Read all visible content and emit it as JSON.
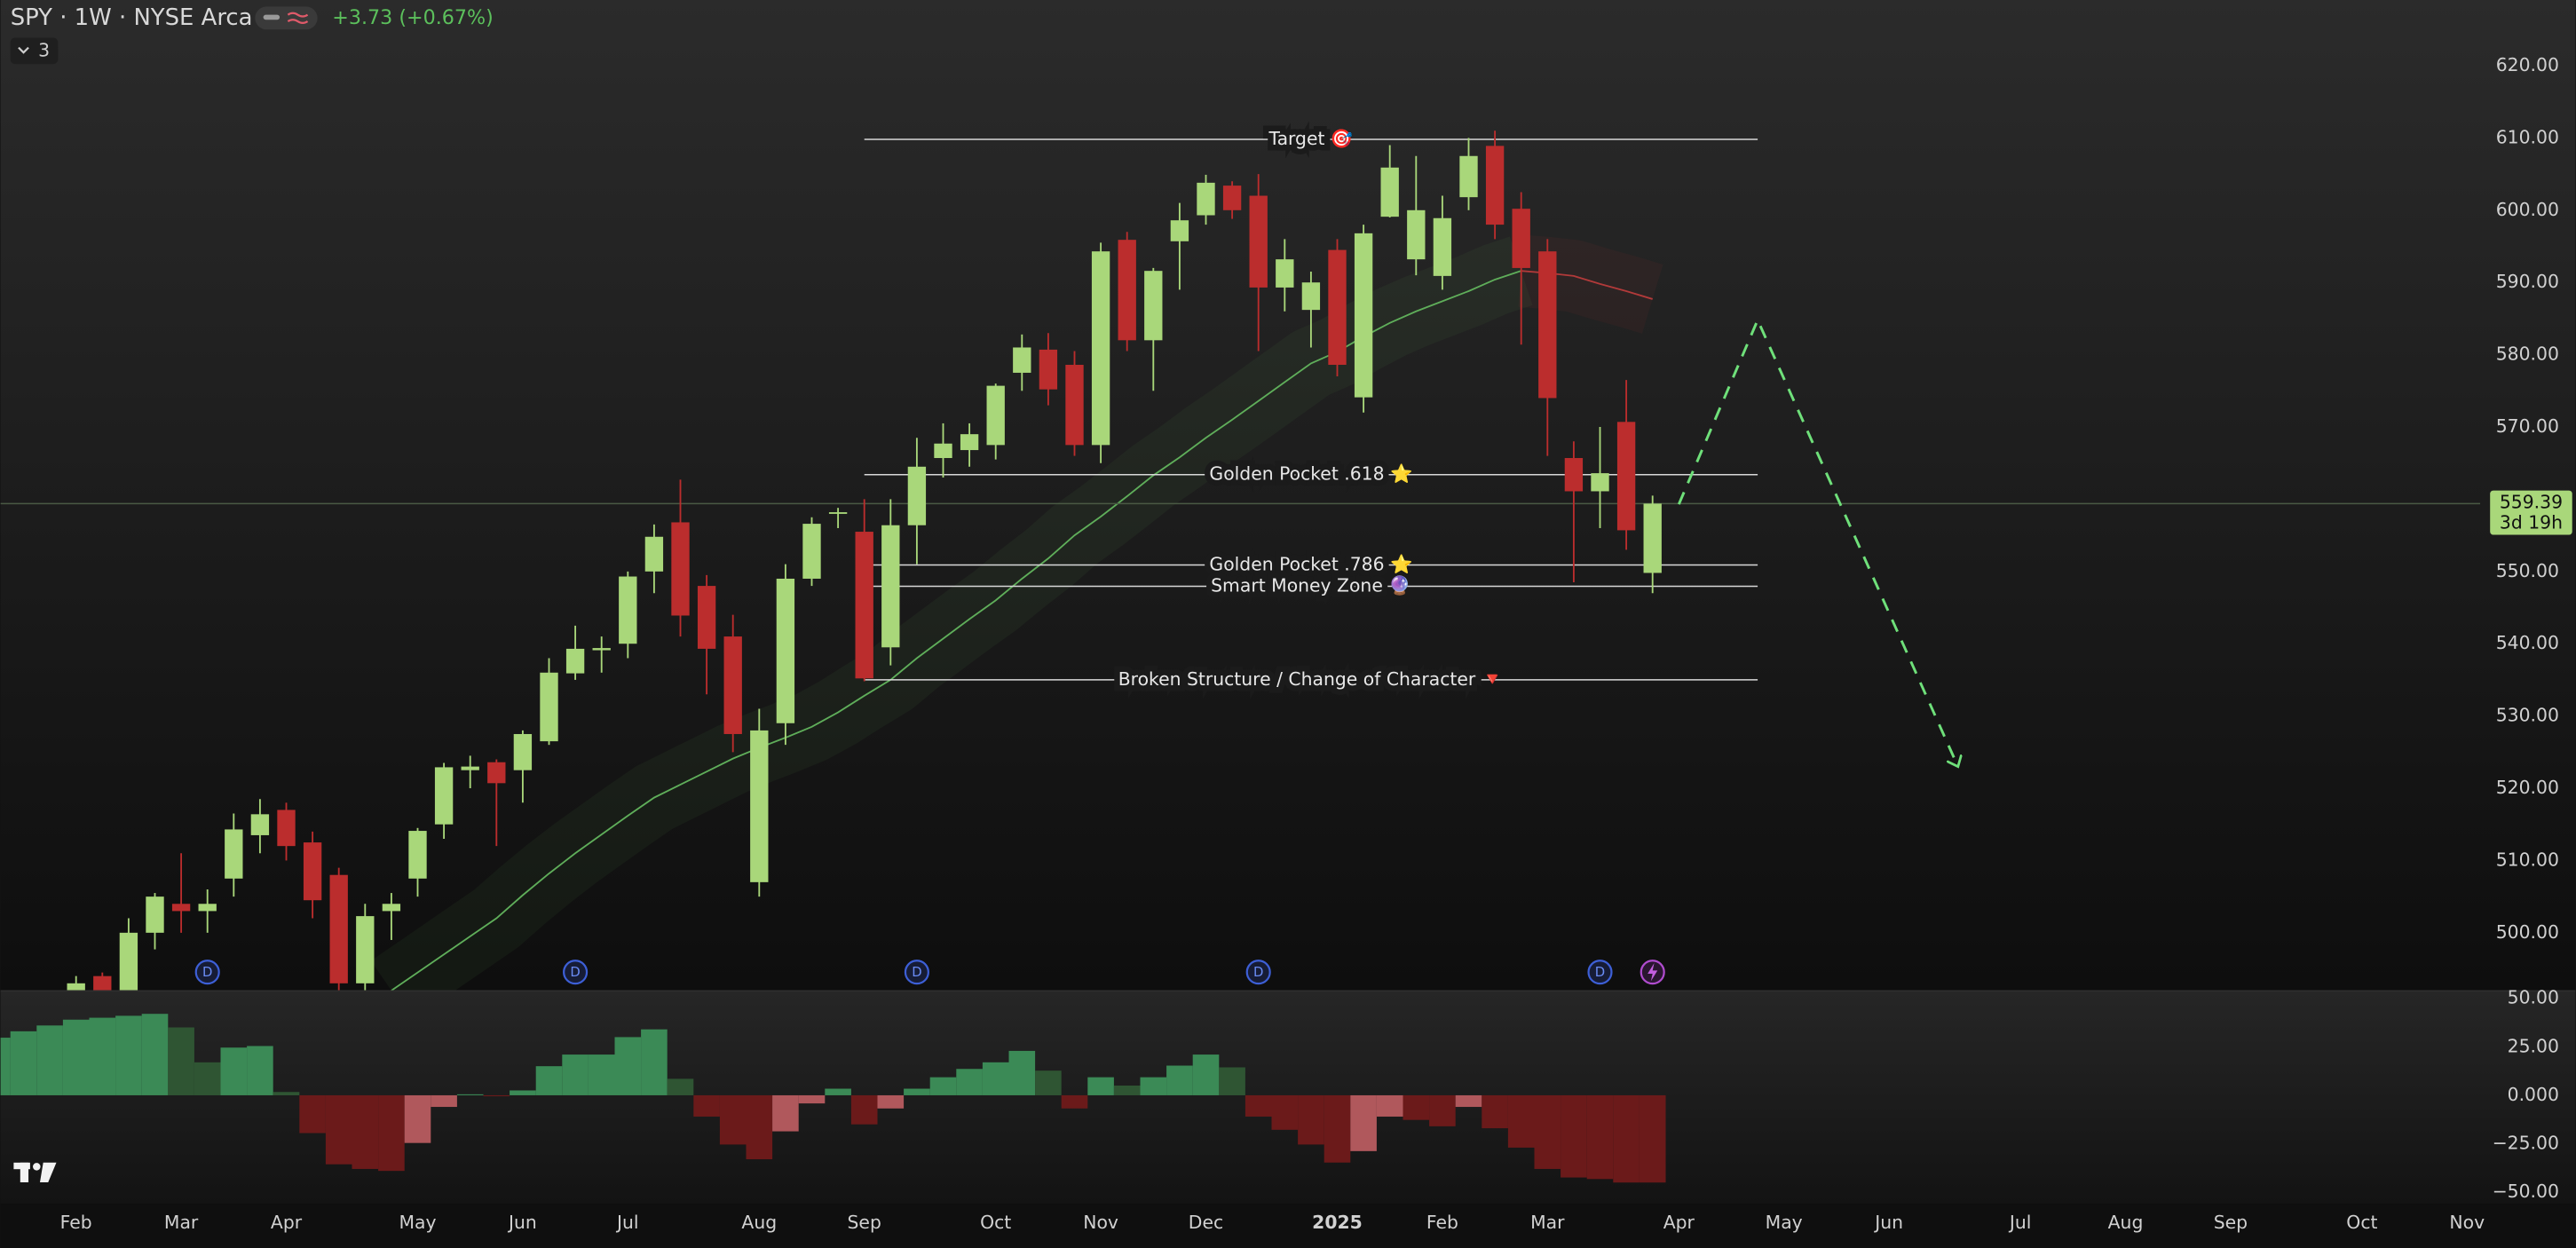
{
  "chart_data": [
    {
      "type": "candlestick",
      "title": "SPY · 1W · NYSE Arca",
      "change": "+3.73 (+0.67%)",
      "collapsed_indicators": 3,
      "countdown": "3d 19h",
      "up_color": "#a9d77a",
      "down_color": "#bb2d2d",
      "x": [
        0,
        1,
        2,
        3,
        4,
        5,
        6,
        7,
        8,
        9,
        10,
        11,
        12,
        13,
        14,
        15,
        16,
        17,
        18,
        19,
        20,
        21,
        22,
        23,
        24,
        25,
        26,
        27,
        28,
        29,
        30,
        31,
        32,
        33,
        34,
        35,
        36,
        37,
        38,
        39,
        40,
        41,
        42,
        43,
        44,
        45,
        46,
        47,
        48,
        49,
        50,
        51,
        52,
        53,
        54,
        55,
        56,
        57,
        58,
        59,
        60
      ],
      "open": [
        490,
        494,
        492,
        500,
        504,
        503,
        507.5,
        513.5,
        517,
        512.5,
        508,
        493,
        503,
        507.5,
        515,
        522.5,
        523.6,
        522.5,
        526.5,
        535.9,
        539.1,
        540,
        550,
        556.8,
        548,
        541,
        507,
        529,
        549,
        558,
        555.5,
        539.5,
        556.4,
        565.7,
        566.8,
        567.5,
        577.5,
        580.7,
        578.6,
        567.5,
        595.9,
        582,
        595.7,
        599.3,
        603.4,
        602,
        589.3,
        586.2,
        594.5,
        574.1,
        599.1,
        593.2,
        590.9,
        601.8,
        608.9,
        600.2,
        594.3,
        565.7,
        561.1,
        570.7,
        549.8
      ],
      "high": [
        494,
        494.5,
        502,
        505.5,
        511,
        506,
        516.5,
        518.5,
        518,
        514,
        509,
        504,
        505.5,
        514.5,
        523.5,
        524.5,
        524,
        528,
        538,
        542.5,
        541,
        550,
        556.5,
        562.7,
        549.5,
        544,
        531,
        551,
        557.5,
        558.8,
        560,
        560,
        568.5,
        570.5,
        570.5,
        576,
        582.8,
        583,
        580.5,
        595.5,
        597,
        592,
        601,
        604.9,
        604,
        605,
        596,
        591.5,
        596,
        598,
        609,
        607.5,
        602,
        610,
        611,
        602.5,
        596,
        568,
        570,
        576.5,
        560.5
      ],
      "low": [
        489,
        489,
        490,
        497.7,
        500,
        500,
        505,
        511,
        510,
        502,
        491,
        491,
        499,
        505,
        513,
        520,
        512,
        518,
        526,
        535,
        536,
        538,
        547,
        541,
        533,
        525,
        505,
        526,
        548,
        556,
        534.8,
        537,
        551,
        563,
        564.5,
        565.5,
        575,
        573,
        566,
        565,
        580.5,
        575,
        589,
        598,
        598.8,
        580.5,
        586,
        581,
        577,
        572,
        599,
        591,
        589,
        600,
        596,
        581.4,
        566,
        548.5,
        556,
        553,
        547
      ],
      "close": [
        493,
        491,
        500,
        505,
        503,
        504,
        514.3,
        516.4,
        512,
        504.5,
        493,
        502.3,
        504,
        514.1,
        522.9,
        523,
        520.7,
        527.5,
        536,
        539.3,
        539.4,
        549.3,
        554.8,
        543.9,
        539.3,
        527.5,
        528,
        549,
        556.6,
        558.2,
        535.2,
        556.4,
        564.5,
        567.7,
        569,
        575.7,
        581,
        575.2,
        567.5,
        594.3,
        582,
        591.6,
        598.6,
        603.8,
        600,
        589.3,
        593.2,
        590,
        578.6,
        596.8,
        605.9,
        600,
        598.9,
        607.5,
        598,
        592,
        574,
        561.1,
        563.6,
        555.7,
        559.39
      ],
      "series": [
        {
          "color": "#5fae5a",
          "values": [
            null,
            null,
            null,
            null,
            null,
            null,
            null,
            null,
            null,
            null,
            null,
            null,
            492,
            494.5,
            497,
            499.5,
            502,
            505.2,
            508.2,
            511,
            513.6,
            516.2,
            518.7,
            520.5,
            522.3,
            524.1,
            525.6,
            527,
            528.5,
            530.5,
            532.8,
            535,
            538,
            540.7,
            543.4,
            546,
            549,
            551.8,
            555,
            557.6,
            560.4,
            563.3,
            565.8,
            568.5,
            571,
            573.6,
            576.2,
            578.8,
            580.4,
            582.5,
            584.4,
            586,
            587.4,
            588.8,
            590.4,
            591.6,
            null,
            null,
            null,
            null,
            null
          ]
        },
        {
          "color": "#b23a3a",
          "values": [
            null,
            null,
            null,
            null,
            null,
            null,
            null,
            null,
            null,
            null,
            null,
            null,
            null,
            null,
            null,
            null,
            null,
            null,
            null,
            null,
            null,
            null,
            null,
            null,
            null,
            null,
            null,
            null,
            null,
            null,
            null,
            null,
            null,
            null,
            null,
            null,
            null,
            null,
            null,
            null,
            null,
            null,
            null,
            null,
            null,
            null,
            null,
            null,
            null,
            null,
            null,
            null,
            null,
            null,
            null,
            591.6,
            591.3,
            590.9,
            589.8,
            588.8,
            587.7
          ]
        }
      ],
      "annotations": [
        {
          "label": "Target 🎯",
          "value": 609.8,
          "x": [
            30,
            64
          ]
        },
        {
          "label": "Golden Pocket .618 ⭐",
          "value": 563.4,
          "x": [
            30,
            64
          ]
        },
        {
          "label": "Golden Pocket .786 ⭐",
          "value": 550.9,
          "x": [
            30,
            64
          ]
        },
        {
          "label": "Smart Money Zone 🔮",
          "value": 547.95,
          "x": [
            30,
            64
          ]
        },
        {
          "label": "Broken Structure / Change of Character 🔻",
          "value": 535,
          "x": [
            30,
            64
          ]
        }
      ],
      "projection": {
        "color": "#6fe07a",
        "x": [
          61,
          64,
          71.6
        ],
        "values": [
          559.3,
          584.8,
          523.2
        ]
      },
      "events": {
        "x": [
          5,
          19,
          32,
          45,
          58
        ],
        "labels": [
          "D",
          "D",
          "D",
          "D",
          "D"
        ]
      },
      "xlim": [
        -2.875,
        91.5
      ],
      "xticks": [
        {
          "value": 0,
          "label": "Feb"
        },
        {
          "value": 4,
          "label": "Mar"
        },
        {
          "value": 8,
          "label": "Apr"
        },
        {
          "value": 13,
          "label": "May"
        },
        {
          "value": 17,
          "label": "Jun"
        },
        {
          "value": 21,
          "label": "Jul"
        },
        {
          "value": 26,
          "label": "Aug"
        },
        {
          "value": 30,
          "label": "Sep"
        },
        {
          "value": 35,
          "label": "Oct"
        },
        {
          "value": 39,
          "label": "Nov"
        },
        {
          "value": 43,
          "label": "Dec"
        },
        {
          "value": 48,
          "label": "2025"
        },
        {
          "value": 52,
          "label": "Feb"
        },
        {
          "value": 56,
          "label": "Mar"
        },
        {
          "value": 61,
          "label": "Apr"
        },
        {
          "value": 65,
          "label": "May"
        },
        {
          "value": 69,
          "label": "Jun"
        },
        {
          "value": 74,
          "label": "Jul"
        },
        {
          "value": 78,
          "label": "Aug"
        },
        {
          "value": 82,
          "label": "Sep"
        },
        {
          "value": 87,
          "label": "Oct"
        },
        {
          "value": 91,
          "label": "Nov"
        }
      ],
      "ylim": [
        492.05,
        629.09
      ],
      "yticks": [
        {
          "value": 500,
          "label": "500.00"
        },
        {
          "value": 510,
          "label": "510.00"
        },
        {
          "value": 520,
          "label": "520.00"
        },
        {
          "value": 530,
          "label": "530.00"
        },
        {
          "value": 540,
          "label": "540.00"
        },
        {
          "value": 550,
          "label": "550.00"
        },
        {
          "value": 560,
          "label": "560.00"
        },
        {
          "value": 570,
          "label": "570.00"
        },
        {
          "value": 580,
          "label": "580.00"
        },
        {
          "value": 590,
          "label": "590.00"
        },
        {
          "value": 600,
          "label": "600.00"
        },
        {
          "value": 610,
          "label": "610.00"
        },
        {
          "value": 620,
          "label": "620.00"
        }
      ],
      "grid": false
    },
    {
      "type": "bar",
      "palette": [
        "#3b8a56",
        "#2f5533",
        "#6b1a1a",
        "#b0585c"
      ],
      "x": [
        -3,
        -2,
        -1,
        0,
        1,
        2,
        3,
        4,
        5,
        6,
        7,
        8,
        9,
        10,
        11,
        12,
        13,
        14,
        15,
        16,
        17,
        18,
        19,
        20,
        21,
        22,
        23,
        24,
        25,
        26,
        27,
        28,
        29,
        30,
        31,
        32,
        33,
        34,
        35,
        36,
        37,
        38,
        39,
        40,
        41,
        42,
        43,
        44,
        45,
        46,
        47,
        48,
        49,
        50,
        51,
        52,
        53,
        54,
        55,
        56,
        57,
        58,
        59,
        60
      ],
      "values": [
        29.7,
        33,
        36,
        39,
        40,
        41,
        42,
        35,
        17,
        24.6,
        25.4,
        1.7,
        -19.5,
        -35.6,
        -38,
        -39,
        -24.6,
        -6,
        0.5,
        -0.5,
        2.5,
        15,
        21,
        21,
        30,
        34,
        8.5,
        -11,
        -25.4,
        -33,
        -18.6,
        -4.2,
        3.4,
        -15,
        -6.8,
        3.4,
        9.3,
        13.6,
        17,
        22.9,
        12.7,
        -6.8,
        9.3,
        5,
        9.3,
        15.3,
        21,
        14.4,
        -11,
        -17.8,
        -25.4,
        -34.7,
        -28.8,
        -11,
        -12.7,
        -16,
        -6,
        -17,
        -27,
        -38,
        -42.4,
        -43.2,
        -45,
        -45
      ],
      "xlim": [
        -2.875,
        91.5
      ],
      "ylim": [
        -55.9,
        54.2
      ],
      "yticks": [
        {
          "value": 50,
          "label": "50.00"
        },
        {
          "value": 25,
          "label": "25.00"
        },
        {
          "value": 0,
          "label": "0.000"
        },
        {
          "value": -25,
          "label": "−25.00"
        },
        {
          "value": -50,
          "label": "−50.00"
        }
      ],
      "grid": false
    }
  ]
}
